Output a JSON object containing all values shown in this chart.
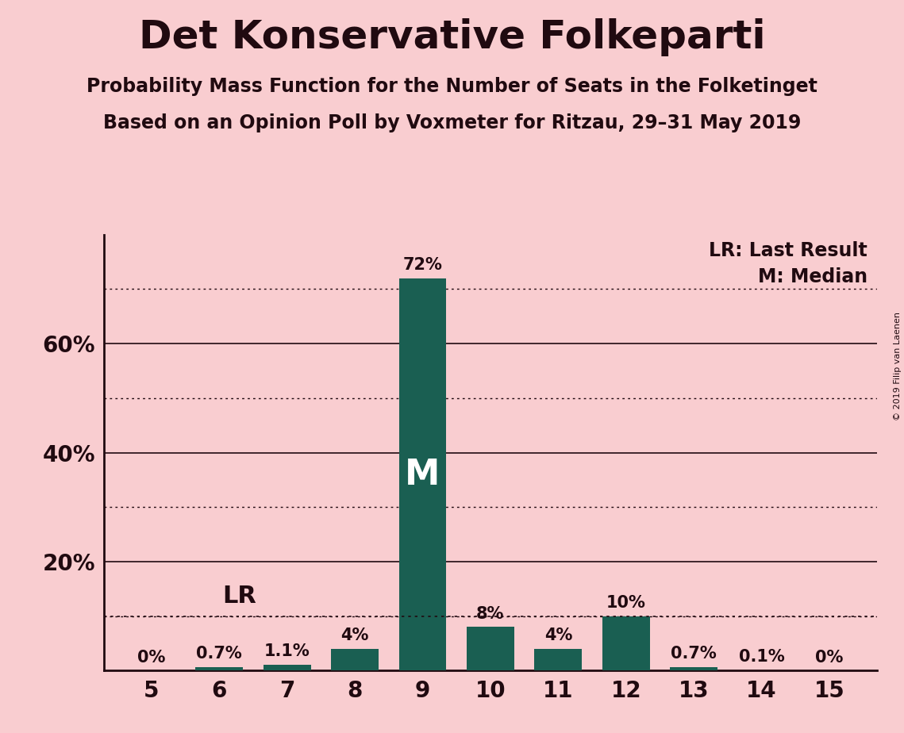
{
  "title": "Det Konservative Folkeparti",
  "subtitle1": "Probability Mass Function for the Number of Seats in the Folketinget",
  "subtitle2": "Based on an Opinion Poll by Voxmeter for Ritzau, 29–31 May 2019",
  "copyright": "© 2019 Filip van Laenen",
  "seats": [
    5,
    6,
    7,
    8,
    9,
    10,
    11,
    12,
    13,
    14,
    15
  ],
  "probabilities": [
    0.0,
    0.7,
    1.1,
    4.0,
    72.0,
    8.0,
    4.0,
    10.0,
    0.7,
    0.1,
    0.0
  ],
  "labels": [
    "0%",
    "0.7%",
    "1.1%",
    "4%",
    "72%",
    "8%",
    "4%",
    "10%",
    "0.7%",
    "0.1%",
    "0%"
  ],
  "bar_color": "#1a5f52",
  "background_color": "#f9cdd0",
  "text_color": "#200a10",
  "lr_value": 10,
  "lr_seat": 6,
  "median_seat": 9,
  "ylim_max": 80,
  "legend_lr": "LR: Last Result",
  "legend_m": "M: Median",
  "solid_grid": [
    20,
    40,
    60
  ],
  "dotted_grid": [
    10,
    30,
    50,
    70
  ]
}
